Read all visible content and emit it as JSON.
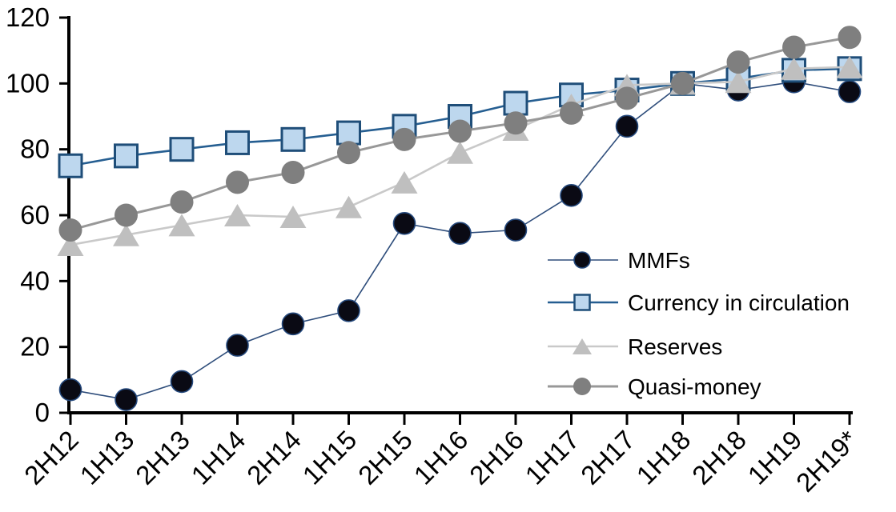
{
  "chart_data": {
    "type": "line",
    "title": "",
    "xlabel": "",
    "ylabel": "",
    "grid": "off",
    "background_color": "#ffffff",
    "axis_color": "#000000",
    "ylim": [
      0,
      120
    ],
    "yticks": [
      0,
      20,
      40,
      60,
      80,
      100,
      120
    ],
    "ytick_labels": [
      "0",
      "20",
      "40",
      "60",
      "80",
      "100",
      "120"
    ],
    "categories": [
      "2H12",
      "1H13",
      "2H13",
      "1H14",
      "2H14",
      "1H15",
      "2H15",
      "1H16",
      "2H16",
      "1H17",
      "2H17",
      "1H18",
      "2H18",
      "1H19",
      "2H19*"
    ],
    "x_tick_label_rotation_deg": -45,
    "legend_position": "inside-right",
    "legend_items": [
      "MMFs",
      "Currency in circulation",
      "Reserves",
      "Quasi-money"
    ],
    "series": [
      {
        "name": "MMFs",
        "marker": "dot",
        "line_color": "#2e4d7b",
        "marker_fill": "#0a0a14",
        "marker_stroke": "#24487c",
        "values": [
          7,
          4,
          9.5,
          20.5,
          27,
          31,
          57.5,
          54.5,
          55.5,
          66,
          87,
          100,
          98,
          100.5,
          97.5
        ]
      },
      {
        "name": "Currency in circulation",
        "marker": "square",
        "line_color": "#255e91",
        "marker_fill": "#bdd7ee",
        "marker_stroke": "#1f4e79",
        "values": [
          75,
          78,
          80,
          82,
          83,
          85,
          87,
          90,
          94,
          96.5,
          98,
          100,
          101.5,
          104,
          104.5
        ]
      },
      {
        "name": "Reserves",
        "marker": "triangle",
        "line_color": "#c9c9c9",
        "marker_fill": "#bfbfbf",
        "marker_stroke": "none",
        "values": [
          51,
          54,
          57,
          60,
          59.5,
          62.5,
          70,
          79,
          86,
          93.5,
          99.5,
          100,
          100.5,
          104.5,
          105
        ]
      },
      {
        "name": "Quasi-money",
        "marker": "circle",
        "line_color": "#989898",
        "marker_fill": "#7f7f7f",
        "marker_stroke": "none",
        "values": [
          55.5,
          60,
          64,
          70,
          73,
          79,
          83,
          85.5,
          88,
          91,
          95.5,
          100,
          106.5,
          111,
          114
        ]
      }
    ]
  }
}
